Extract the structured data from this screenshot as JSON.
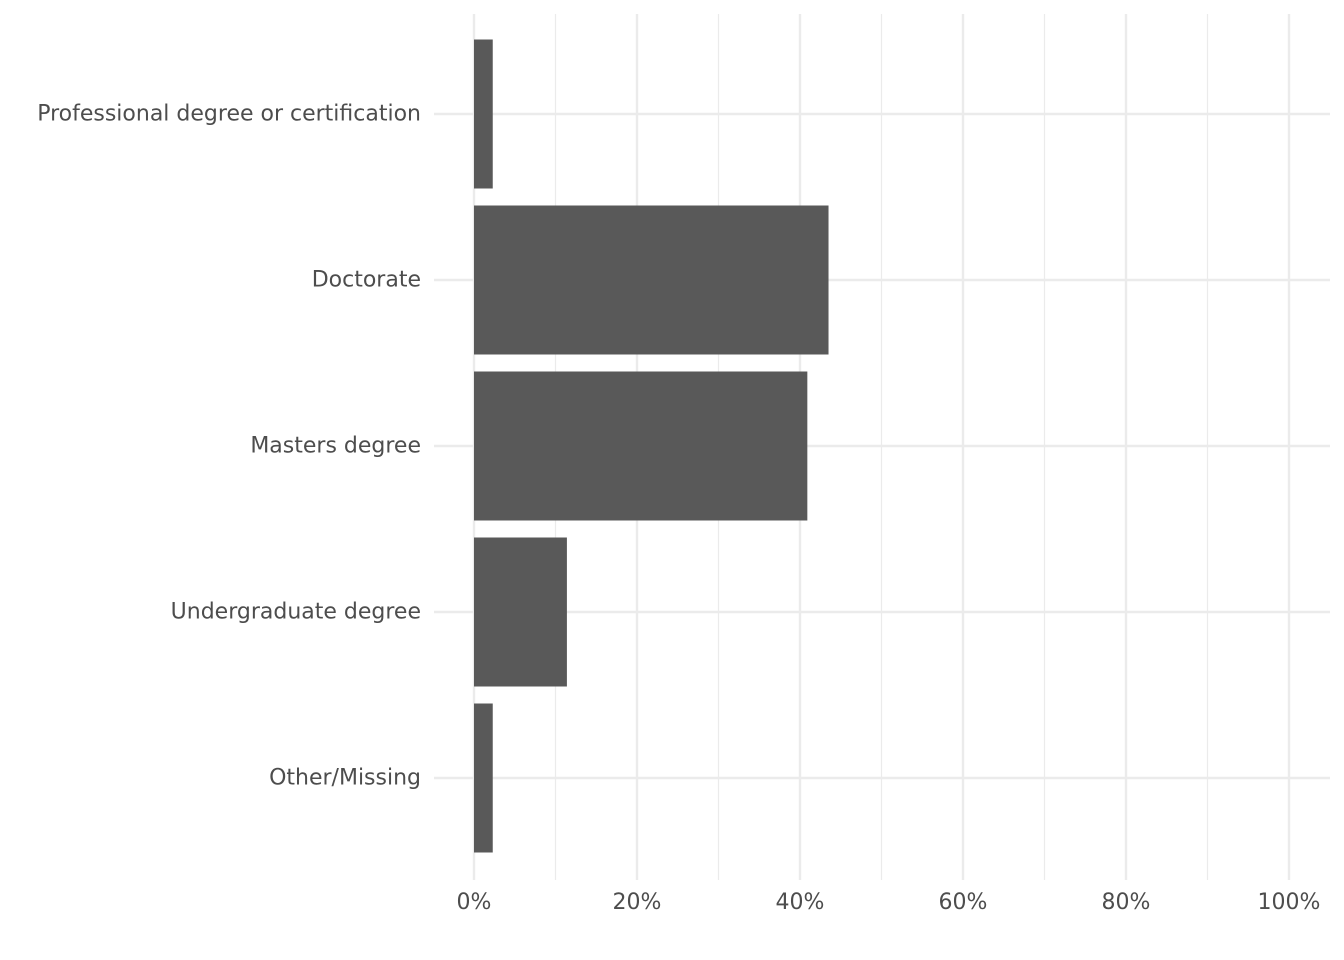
{
  "chart_data": {
    "type": "bar",
    "orientation": "horizontal",
    "categories": [
      "Professional degree or certification",
      "Doctorate",
      "Masters degree",
      "Undergraduate degree",
      "Other/Missing"
    ],
    "values": [
      2.3,
      43.5,
      40.9,
      11.4,
      2.3
    ],
    "xlim": [
      0,
      100
    ],
    "x_ticks": [
      0,
      20,
      40,
      60,
      80,
      100
    ],
    "x_tick_labels": [
      "0%",
      "20%",
      "40%",
      "60%",
      "80%",
      "100%"
    ],
    "title": "",
    "xlabel": "",
    "ylabel": "",
    "grid": true,
    "bar_color": "#595959",
    "grid_color": "#ebebeb",
    "text_color": "#4d4d4d"
  }
}
